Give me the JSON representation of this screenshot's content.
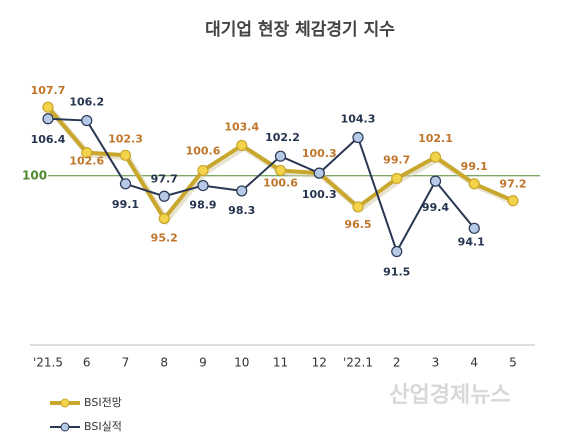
{
  "chart_data": {
    "type": "line",
    "title": "대기업 현장 체감경기 지수",
    "categories": [
      "'21.5",
      "6",
      "7",
      "8",
      "9",
      "10",
      "11",
      "12",
      "'22.1",
      "2",
      "3",
      "4",
      "5"
    ],
    "series": [
      {
        "name": "BSI전망",
        "color": "#c9a62c",
        "values": [
          107.7,
          102.6,
          102.3,
          95.2,
          100.6,
          103.4,
          100.6,
          100.3,
          96.5,
          99.7,
          102.1,
          99.1,
          97.2
        ]
      },
      {
        "name": "BSI실적",
        "color": "#2a3752",
        "values": [
          106.4,
          106.2,
          99.1,
          97.7,
          98.9,
          98.3,
          102.2,
          100.3,
          104.3,
          91.5,
          99.4,
          94.1,
          null
        ]
      }
    ],
    "ylim": [
      81,
      113
    ],
    "reference_line": 100,
    "reference_color": "#4f8a2e",
    "watermark": "산업경제뉴스"
  }
}
